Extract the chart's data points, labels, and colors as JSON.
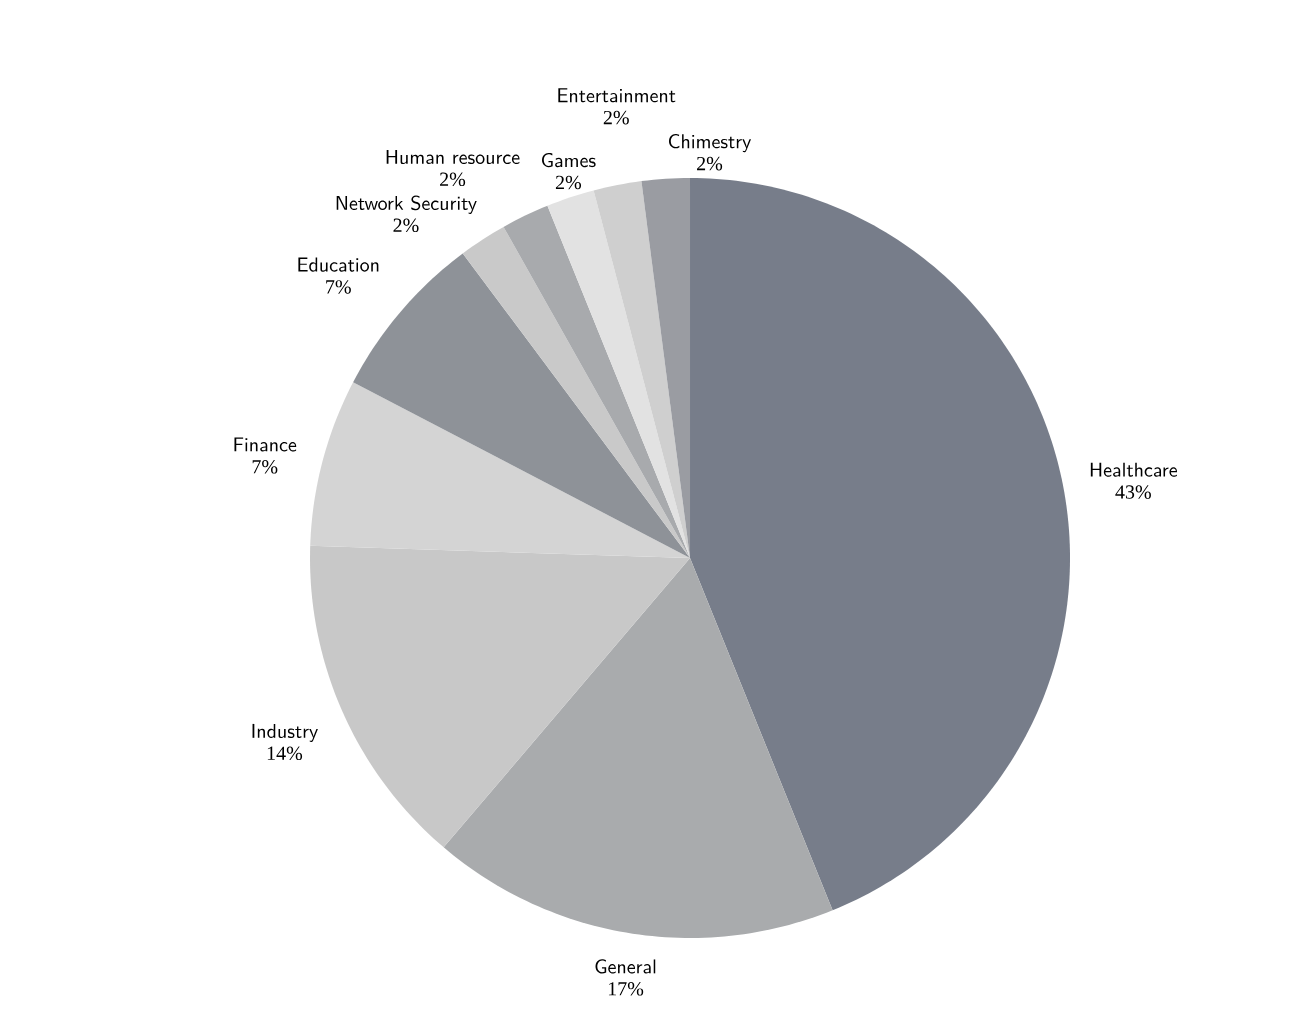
{
  "chart_data": {
    "type": "pie",
    "categories": [
      "Healthcare",
      "General",
      "Industry",
      "Finance",
      "Education",
      "Network Security",
      "Human resource",
      "Games",
      "Entertainment",
      "Chimestry"
    ],
    "values": [
      43,
      17,
      14,
      7,
      7,
      2,
      2,
      2,
      2,
      2
    ],
    "value_labels": [
      "43%",
      "17%",
      "14%",
      "7%",
      "7%",
      "2%",
      "2%",
      "2%",
      "2%",
      "2%"
    ],
    "colors": [
      "#777d8a",
      "#a9abad",
      "#c8c8c8",
      "#d4d4d4",
      "#8e9298",
      "#c9c9c9",
      "#a8aaad",
      "#e2e2e2",
      "#cfcfcf",
      "#9a9ca2"
    ]
  }
}
